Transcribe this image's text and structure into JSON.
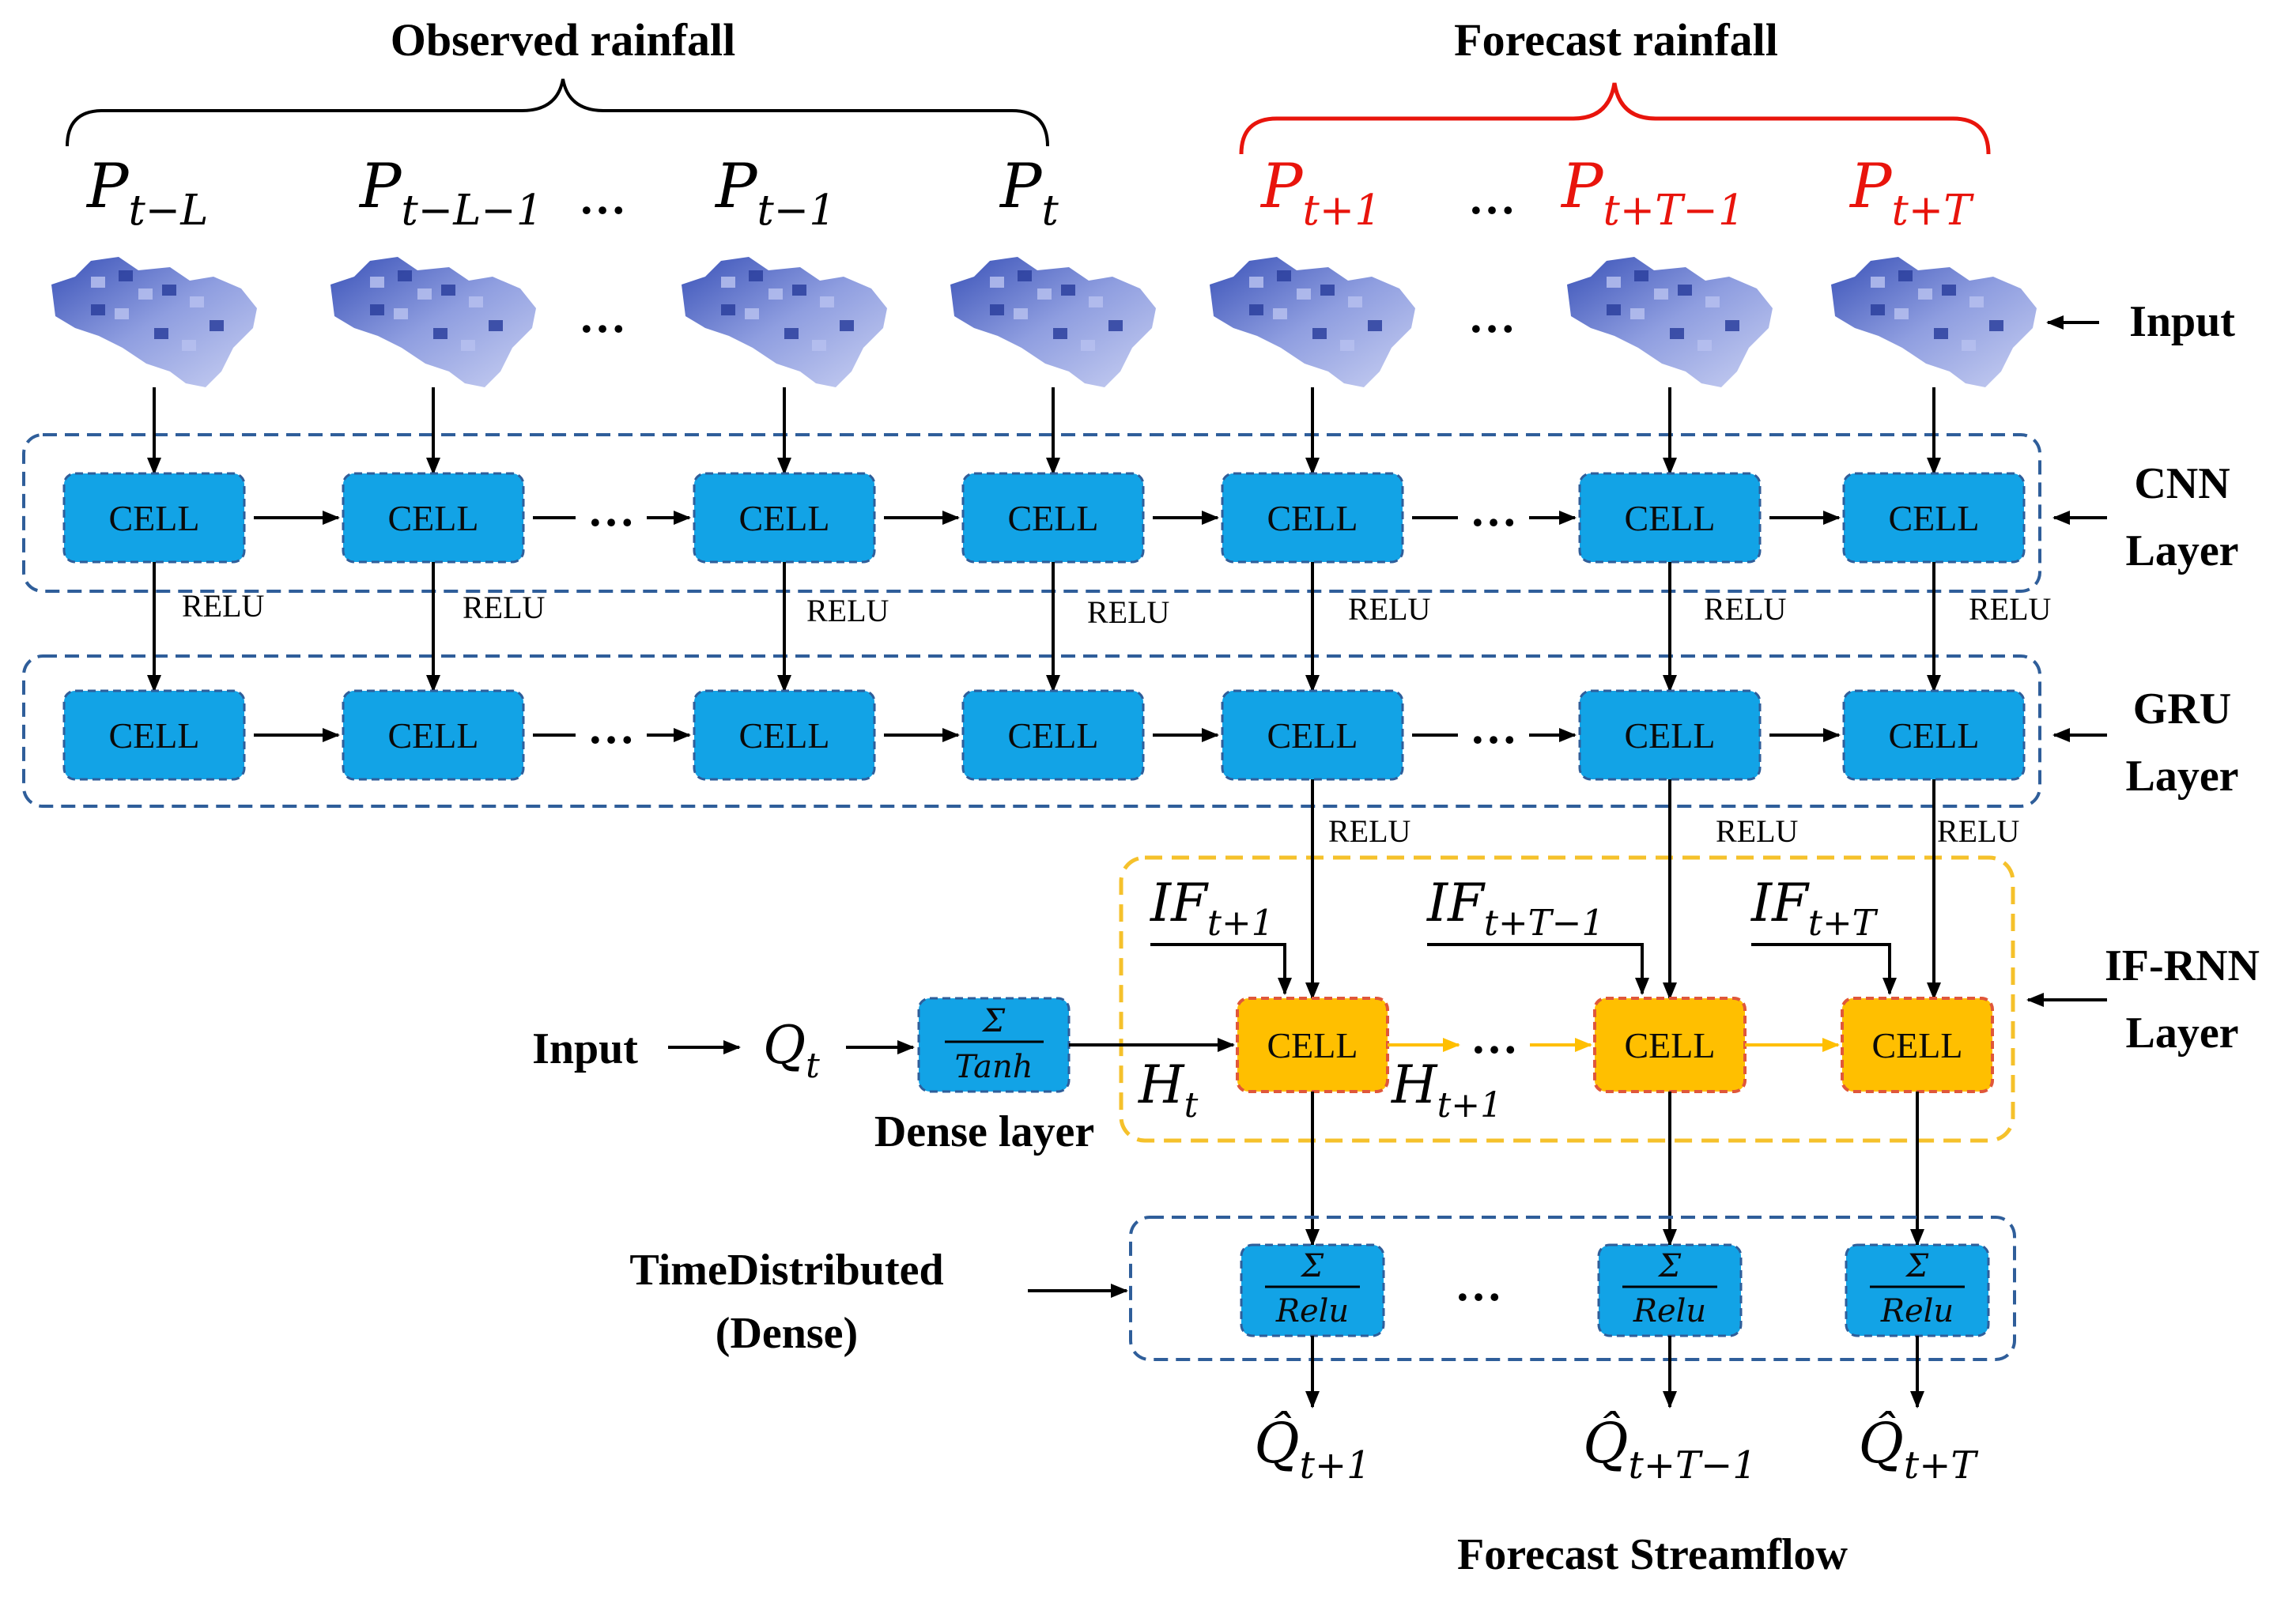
{
  "titles": {
    "observed": "Observed rainfall",
    "forecast": "Forecast rainfall",
    "dense_layer": "Dense layer",
    "forecast_streamflow": "Forecast Streamflow",
    "input_left": "Input"
  },
  "rainfall_inputs": [
    {
      "symbol": "P",
      "sub": "t−L",
      "type": "observed"
    },
    {
      "symbol": "P",
      "sub": "t−L−1",
      "type": "observed"
    },
    {
      "symbol": "P",
      "sub": "t−1",
      "type": "observed"
    },
    {
      "symbol": "P",
      "sub": "t",
      "type": "observed"
    },
    {
      "symbol": "P",
      "sub": "t+1",
      "type": "forecast"
    },
    {
      "symbol": "P",
      "sub": "t+T−1",
      "type": "forecast"
    },
    {
      "symbol": "P",
      "sub": "t+T",
      "type": "forecast"
    }
  ],
  "layers": {
    "input": "Input",
    "cnn": [
      "CNN",
      "Layer"
    ],
    "gru": [
      "GRU",
      "Layer"
    ],
    "ifrnn": [
      "IF-RNN",
      "Layer"
    ],
    "timedist": [
      "TimeDistributed",
      "(Dense)"
    ]
  },
  "cell_label": "CELL",
  "relu_label": "RELU",
  "ellipsis": "…",
  "if_inputs": [
    {
      "symbol": "IF",
      "sub": "t+1"
    },
    {
      "symbol": "IF",
      "sub": "t+T−1"
    },
    {
      "symbol": "IF",
      "sub": "t+T"
    }
  ],
  "hidden_states": [
    {
      "symbol": "H",
      "sub": "t"
    },
    {
      "symbol": "H",
      "sub": "t+1"
    }
  ],
  "q_input": {
    "symbol": "Q",
    "sub": "t"
  },
  "dense_tanh": {
    "top": "Σ",
    "bottom": "Tanh"
  },
  "dense_relu": {
    "top": "Σ",
    "bottom": "Relu"
  },
  "outputs": [
    {
      "symbol": "Q̂",
      "sub": "t+1"
    },
    {
      "symbol": "Q̂",
      "sub": "t+T−1"
    },
    {
      "symbol": "Q̂",
      "sub": "t+T"
    }
  ],
  "colors": {
    "cell_blue": "#12a3e6",
    "cell_orange": "#ffbf00",
    "forecast_red": "#e8140c",
    "layer_border": "#2f5e9a",
    "ifrnn_border": "#f5c12b"
  }
}
